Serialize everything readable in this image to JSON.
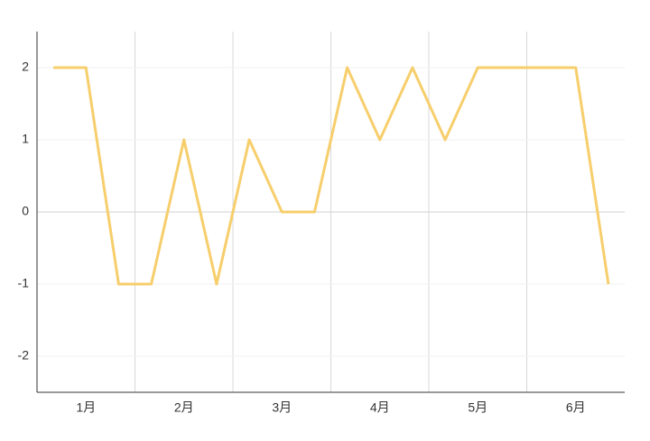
{
  "chart_data": {
    "type": "line",
    "categories": [
      null,
      "1月",
      null,
      null,
      "2月",
      null,
      null,
      "3月",
      null,
      null,
      "4月",
      null,
      null,
      "5月",
      null,
      null,
      "6月",
      null
    ],
    "series": [
      {
        "color": "#f7ce6c",
        "values": [
          2,
          2,
          -1,
          -1,
          1,
          -1,
          1,
          0,
          0,
          2,
          1,
          2,
          1,
          2,
          2,
          2,
          2,
          -1
        ]
      }
    ],
    "ylim": [
      -2.5,
      2.5
    ],
    "yticks": [
      -2,
      -1,
      0,
      1,
      2
    ],
    "grid": true
  }
}
